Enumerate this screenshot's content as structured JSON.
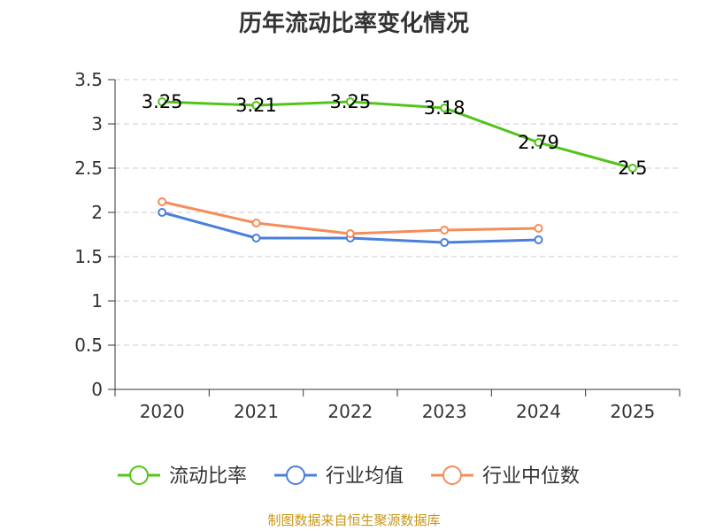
{
  "chart_data": {
    "type": "line",
    "title": "历年流动比率变化情况",
    "categories": [
      "2020",
      "2021",
      "2022",
      "2023",
      "2024",
      "2025"
    ],
    "ylim": [
      0,
      3.5
    ],
    "yticks": [
      "0",
      "0.5",
      "1",
      "1.5",
      "2",
      "2.5",
      "3",
      "3.5"
    ],
    "grid": true,
    "legend_position": "bottom",
    "series": [
      {
        "name": "流动比率",
        "color": "#52c41a",
        "values": [
          3.25,
          3.21,
          3.25,
          3.18,
          2.79,
          2.5
        ],
        "labels": [
          "3.25",
          "3.21",
          "3.25",
          "3.18",
          "2.79",
          "2.5"
        ]
      },
      {
        "name": "行业均值",
        "color": "#4a7fdc",
        "values": [
          2.0,
          1.71,
          1.71,
          1.66,
          1.69,
          null
        ]
      },
      {
        "name": "行业中位数",
        "color": "#f58d5a",
        "values": [
          2.12,
          1.88,
          1.76,
          1.8,
          1.82,
          null
        ]
      }
    ]
  },
  "source_note": "制图数据来自恒生聚源数据库"
}
